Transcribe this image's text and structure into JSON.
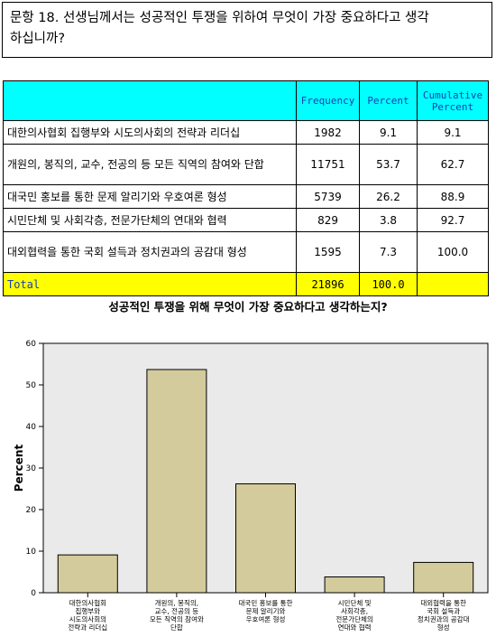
{
  "question": {
    "line1": "문항 18. 선생님께서는 성공적인 투쟁을 위하여 무엇이 가장 중요하다고 생각",
    "line2": "하십니까?"
  },
  "table": {
    "headers": [
      "Frequency",
      "Percent",
      "Cumulative Percent"
    ],
    "rows": [
      {
        "label": "대한의사협회 집행부와 시도의사회의 전략과 리더십",
        "frequency": "1982",
        "percent": "9.1",
        "cumulative": "9.1"
      },
      {
        "label": "개원의, 봉직의, 교수, 전공의 등 모든 직역의 참여와 단합",
        "frequency": "11751",
        "percent": "53.7",
        "cumulative": "62.7"
      },
      {
        "label": "대국민 홍보를 통한 문제 알리기와 우호여론 형성",
        "frequency": "5739",
        "percent": "26.2",
        "cumulative": "88.9"
      },
      {
        "label": "시민단체 및 사회각층, 전문가단체의 연대와 협력",
        "frequency": "829",
        "percent": "3.8",
        "cumulative": "92.7"
      },
      {
        "label": "대외협력을 통한 국회 설득과 정치권과의 공감대 형성",
        "frequency": "1595",
        "percent": "7.3",
        "cumulative": "100.0"
      }
    ],
    "total": {
      "label": "Total",
      "frequency": "21896",
      "percent": "100.0",
      "cumulative": ""
    }
  },
  "chart_data": {
    "type": "bar",
    "title": "성공적인 투쟁을 위해 무엇이 가장 중요하다고 생각하는지?",
    "ylabel": "Percent",
    "xlabel": "",
    "ylim": [
      0,
      60
    ],
    "yticks": [
      0,
      10,
      20,
      30,
      40,
      50,
      60
    ],
    "categories": [
      [
        "대한의사협회",
        "집행부와",
        "시도의사회의",
        "전략과 리더십"
      ],
      [
        "개원의, 봉직의,",
        "교수, 전공의 등",
        "모든 직역의 참여와",
        "단합"
      ],
      [
        "대국민 홍보를 통한",
        "문제 알리기와",
        "우호여론 형성"
      ],
      [
        "시민단체 및",
        "사회각층,",
        "전문가단체의",
        "연대와 협력"
      ],
      [
        "대외협력을 통한",
        "국회 설득과",
        "정치권과의 공감대",
        "형성"
      ]
    ],
    "values": [
      9.1,
      53.7,
      26.2,
      3.8,
      7.3
    ],
    "colors": {
      "bar_fill": "#d3cb9b",
      "bar_stroke": "#000000",
      "plot_bg": "#eaeaea",
      "plot_border": "#000000"
    },
    "grid": false
  }
}
